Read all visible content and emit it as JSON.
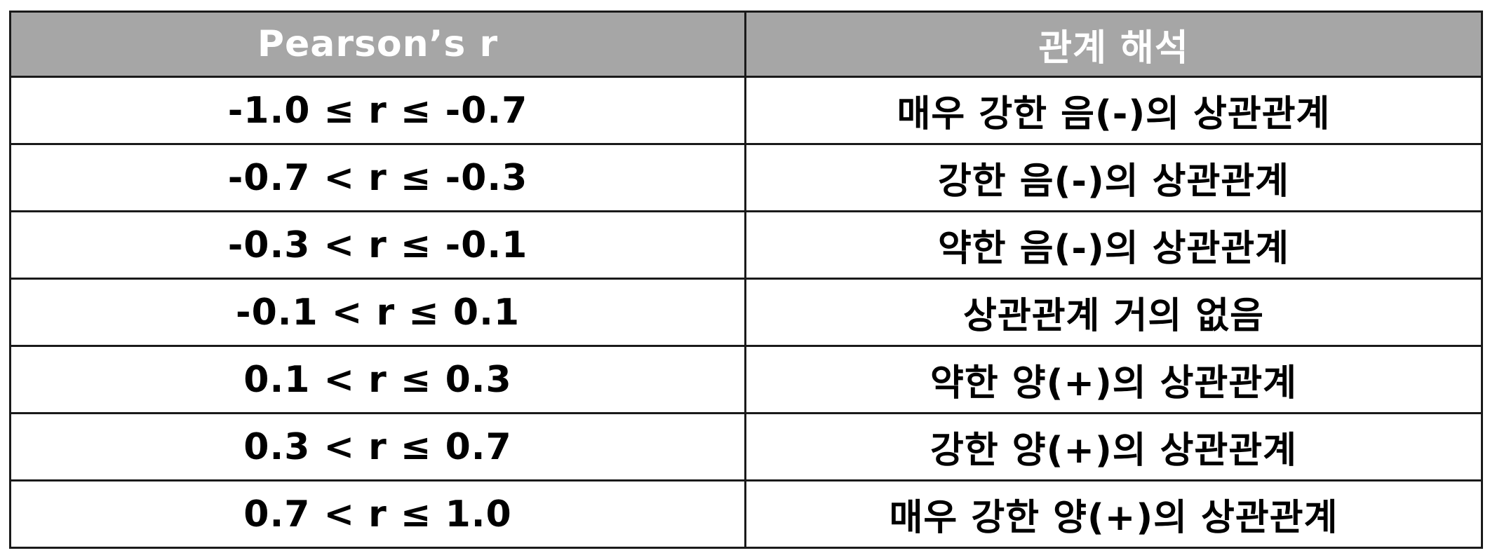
{
  "table": {
    "headers": [
      "Pearson’s r",
      "관계 해석"
    ],
    "rows": [
      [
        "-1.0 ≤ r ≤ -0.7",
        "매우 강한 음(-)의 상관관계"
      ],
      [
        "-0.7 < r ≤ -0.3",
        "강한 음(-)의 상관관계"
      ],
      [
        "-0.3 < r ≤ -0.1",
        "약한 음(-)의 상관관계"
      ],
      [
        "-0.1 < r ≤ 0.1",
        "상관관계 거의 없음"
      ],
      [
        "0.1 < r ≤ 0.3",
        "약한 양(+)의 상관관계"
      ],
      [
        "0.3 < r ≤ 0.7",
        "강한 양(+)의 상관관계"
      ],
      [
        "0.7 < r ≤ 1.0",
        "매우 강한 양(+)의 상관관계"
      ]
    ],
    "colors": {
      "header_bg": "#a6a6a6",
      "header_text": "#ffffff",
      "border": "#1a1a1a",
      "body_text": "#000000"
    }
  }
}
